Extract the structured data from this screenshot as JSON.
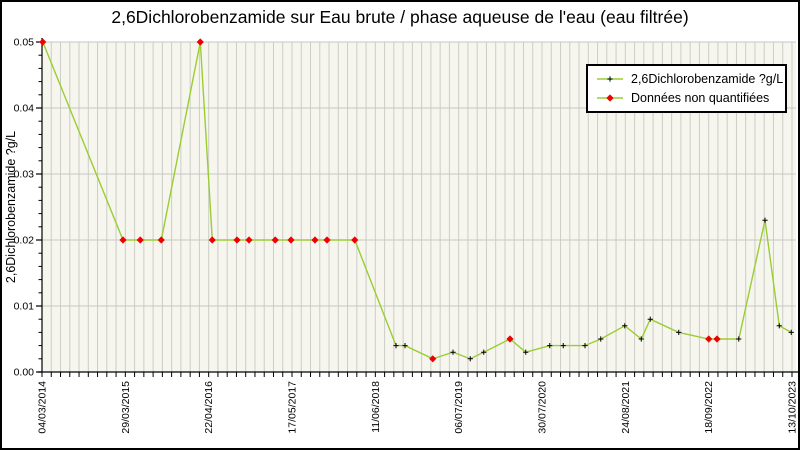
{
  "title": "2,6Dichlorobenzamide sur Eau brute / phase aqueuse de l'eau (eau filtrée)",
  "legend": {
    "items": [
      {
        "label": "2,6Dichlorobenzamide ?g/L",
        "marker": "plus",
        "marker_color": "#000000",
        "line_color": "#9ACD32"
      },
      {
        "label": "Données non quantifiées",
        "marker": "diamond",
        "marker_color": "#EE0000",
        "line_color": "#9ACD32"
      }
    ]
  },
  "colors": {
    "line": "#9ACD32",
    "marker_plus": "#000000",
    "marker_nq": "#EE0000",
    "plot_bg": "#F6F6EE",
    "grid_vertical": "#CDCDC8",
    "grid_horizontal": "#C6C6C6",
    "axis": "#000000",
    "text": "#000000",
    "figure_border": "#000000"
  },
  "chart_data": {
    "type": "line",
    "title": "2,6Dichlorobenzamide sur Eau brute / phase aqueuse de l'eau (eau filtrée)",
    "xlabel": "",
    "ylabel": "2,6Dichlorobenzamide ?g/L",
    "ylim": [
      0,
      0.05
    ],
    "y_major_ticks": [
      0.0,
      0.01,
      0.02,
      0.03,
      0.04,
      0.05
    ],
    "y_minor_step": 0.002,
    "x_tick_labels": [
      "04/03/2014",
      "29/03/2015",
      "22/04/2016",
      "17/05/2017",
      "11/06/2018",
      "06/07/2019",
      "30/07/2020",
      "24/08/2021",
      "18/09/2022",
      "13/10/2023"
    ],
    "x_minor_per_major": 9,
    "grid": "both",
    "legend_position": "top-right",
    "series": [
      {
        "name": "2,6Dichlorobenzamide ?g/L",
        "note": "points: x = fraction of x-axis span between first tick 04/03/2014 and last tick 13/10/2023; y = concentration; nq = true means 'Données non quantifiées' (red diamond marker), false = quantified (black plus marker)",
        "points": [
          {
            "x": 0.001,
            "y": 0.05,
            "nq": true
          },
          {
            "x": 0.108,
            "y": 0.02,
            "nq": true
          },
          {
            "x": 0.131,
            "y": 0.02,
            "nq": true
          },
          {
            "x": 0.159,
            "y": 0.02,
            "nq": true
          },
          {
            "x": 0.211,
            "y": 0.05,
            "nq": true
          },
          {
            "x": 0.227,
            "y": 0.02,
            "nq": true
          },
          {
            "x": 0.26,
            "y": 0.02,
            "nq": true
          },
          {
            "x": 0.276,
            "y": 0.02,
            "nq": true
          },
          {
            "x": 0.311,
            "y": 0.02,
            "nq": true
          },
          {
            "x": 0.332,
            "y": 0.02,
            "nq": true
          },
          {
            "x": 0.364,
            "y": 0.02,
            "nq": true
          },
          {
            "x": 0.38,
            "y": 0.02,
            "nq": true
          },
          {
            "x": 0.417,
            "y": 0.02,
            "nq": true
          },
          {
            "x": 0.472,
            "y": 0.004,
            "nq": false
          },
          {
            "x": 0.484,
            "y": 0.004,
            "nq": false
          },
          {
            "x": 0.521,
            "y": 0.002,
            "nq": true
          },
          {
            "x": 0.548,
            "y": 0.003,
            "nq": false
          },
          {
            "x": 0.571,
            "y": 0.002,
            "nq": false
          },
          {
            "x": 0.589,
            "y": 0.003,
            "nq": false
          },
          {
            "x": 0.624,
            "y": 0.005,
            "nq": true
          },
          {
            "x": 0.645,
            "y": 0.003,
            "nq": false
          },
          {
            "x": 0.677,
            "y": 0.004,
            "nq": false
          },
          {
            "x": 0.695,
            "y": 0.004,
            "nq": false
          },
          {
            "x": 0.724,
            "y": 0.004,
            "nq": false
          },
          {
            "x": 0.745,
            "y": 0.005,
            "nq": false
          },
          {
            "x": 0.777,
            "y": 0.007,
            "nq": false
          },
          {
            "x": 0.799,
            "y": 0.005,
            "nq": false
          },
          {
            "x": 0.811,
            "y": 0.008,
            "nq": false
          },
          {
            "x": 0.849,
            "y": 0.006,
            "nq": false
          },
          {
            "x": 0.889,
            "y": 0.005,
            "nq": true
          },
          {
            "x": 0.9,
            "y": 0.005,
            "nq": true
          },
          {
            "x": 0.929,
            "y": 0.005,
            "nq": false
          },
          {
            "x": 0.964,
            "y": 0.023,
            "nq": false
          },
          {
            "x": 0.983,
            "y": 0.007,
            "nq": false
          },
          {
            "x": 0.999,
            "y": 0.006,
            "nq": false
          }
        ]
      }
    ]
  }
}
